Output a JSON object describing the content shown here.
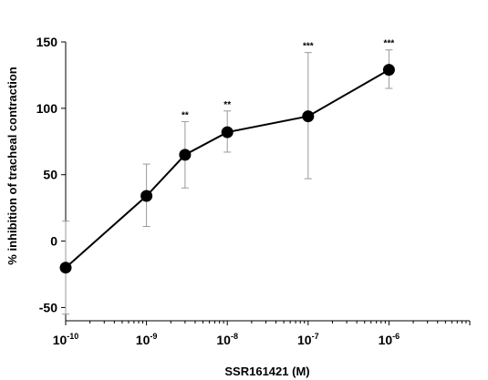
{
  "chart_data": {
    "type": "line",
    "title": "",
    "xlabel": "SSR161421 (M)",
    "ylabel": "% inhibition of tracheal contraction",
    "x_scale": "log",
    "xlim_exponent": [
      -10,
      -5
    ],
    "ylim": [
      -60,
      150
    ],
    "y_ticks": [
      "-50",
      "0",
      "50",
      "100",
      "150"
    ],
    "x_ticks": [
      {
        "base": "10",
        "exp": "-10"
      },
      {
        "base": "10",
        "exp": "-9"
      },
      {
        "base": "10",
        "exp": "-8"
      },
      {
        "base": "10",
        "exp": "-7"
      },
      {
        "base": "10",
        "exp": "-6"
      }
    ],
    "grid": false,
    "legend": "none",
    "series": [
      {
        "x": [
          "1e-10",
          "1e-9",
          "3e-9",
          "1e-8",
          "1e-7",
          "1e-6"
        ],
        "y": [
          -20,
          34,
          65,
          82,
          94,
          129
        ],
        "err_upper": [
          35,
          24,
          25,
          16,
          48,
          15
        ],
        "err_lower": [
          35,
          23,
          25,
          15,
          47,
          14
        ],
        "significance": [
          "",
          "",
          "**",
          "**",
          "***",
          "***"
        ]
      }
    ],
    "colors": {
      "line": "#000000",
      "marker": "#000000",
      "errorbar": "#999999"
    }
  }
}
